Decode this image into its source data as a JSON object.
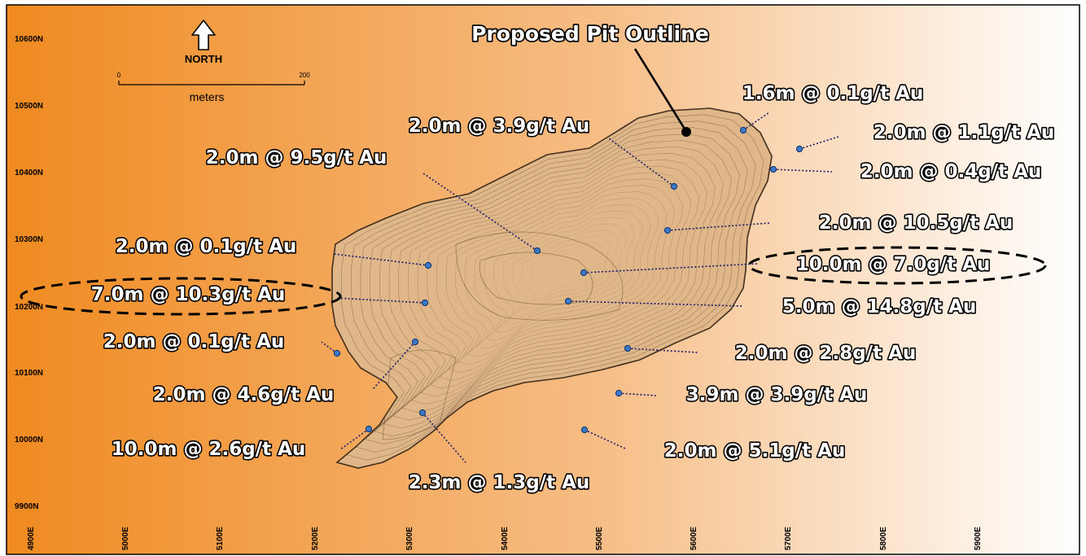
{
  "colors": {
    "background_left": "#f08a20",
    "background_right": "#ffffff",
    "pit_fill": "#dfb789",
    "pit_line": "#6e5236",
    "drill_hole": "#3a78c8",
    "highlight_ellipse": "#000000"
  },
  "map": {
    "title": "Proposed Pit Outline",
    "north_arrow": {
      "label": "NORTH"
    },
    "scale_bar": {
      "start": "0",
      "end": "200",
      "unit": "meters"
    },
    "northings": [
      "10600N",
      "10500N",
      "10400N",
      "10300N",
      "10200N",
      "10100N",
      "10000N",
      "9900N"
    ],
    "eastings": [
      "4900E",
      "5000E",
      "5100E",
      "5200E",
      "5300E",
      "5400E",
      "5500E",
      "5600E",
      "5700E",
      "5800E",
      "5900E"
    ],
    "intercepts": [
      {
        "text": "1.6m @ 0.1g/t Au",
        "highlighted": false
      },
      {
        "text": "2.0m @ 3.9g/t Au",
        "highlighted": false
      },
      {
        "text": "2.0m @ 1.1g/t Au",
        "highlighted": false
      },
      {
        "text": "2.0m @ 9.5g/t Au",
        "highlighted": false
      },
      {
        "text": "2.0m @ 0.4g/t Au",
        "highlighted": false
      },
      {
        "text": "2.0m @ 10.5g/t Au",
        "highlighted": false
      },
      {
        "text": "2.0m @ 0.1g/t Au",
        "highlighted": false
      },
      {
        "text": "10.0m @ 7.0g/t Au",
        "highlighted": true
      },
      {
        "text": "7.0m @ 10.3g/t Au",
        "highlighted": true
      },
      {
        "text": "5.0m @ 14.8g/t Au",
        "highlighted": false
      },
      {
        "text": "2.0m @ 0.1g/t Au",
        "highlighted": false
      },
      {
        "text": "2.0m @ 2.8g/t Au",
        "highlighted": false
      },
      {
        "text": "2.0m @ 4.6g/t Au",
        "highlighted": false
      },
      {
        "text": "3.9m @ 3.9g/t Au",
        "highlighted": false
      },
      {
        "text": "10.0m @ 2.6g/t Au",
        "highlighted": false
      },
      {
        "text": "2.0m @ 5.1g/t Au",
        "highlighted": false
      },
      {
        "text": "2.3m @ 1.3g/t Au",
        "highlighted": false
      }
    ]
  }
}
